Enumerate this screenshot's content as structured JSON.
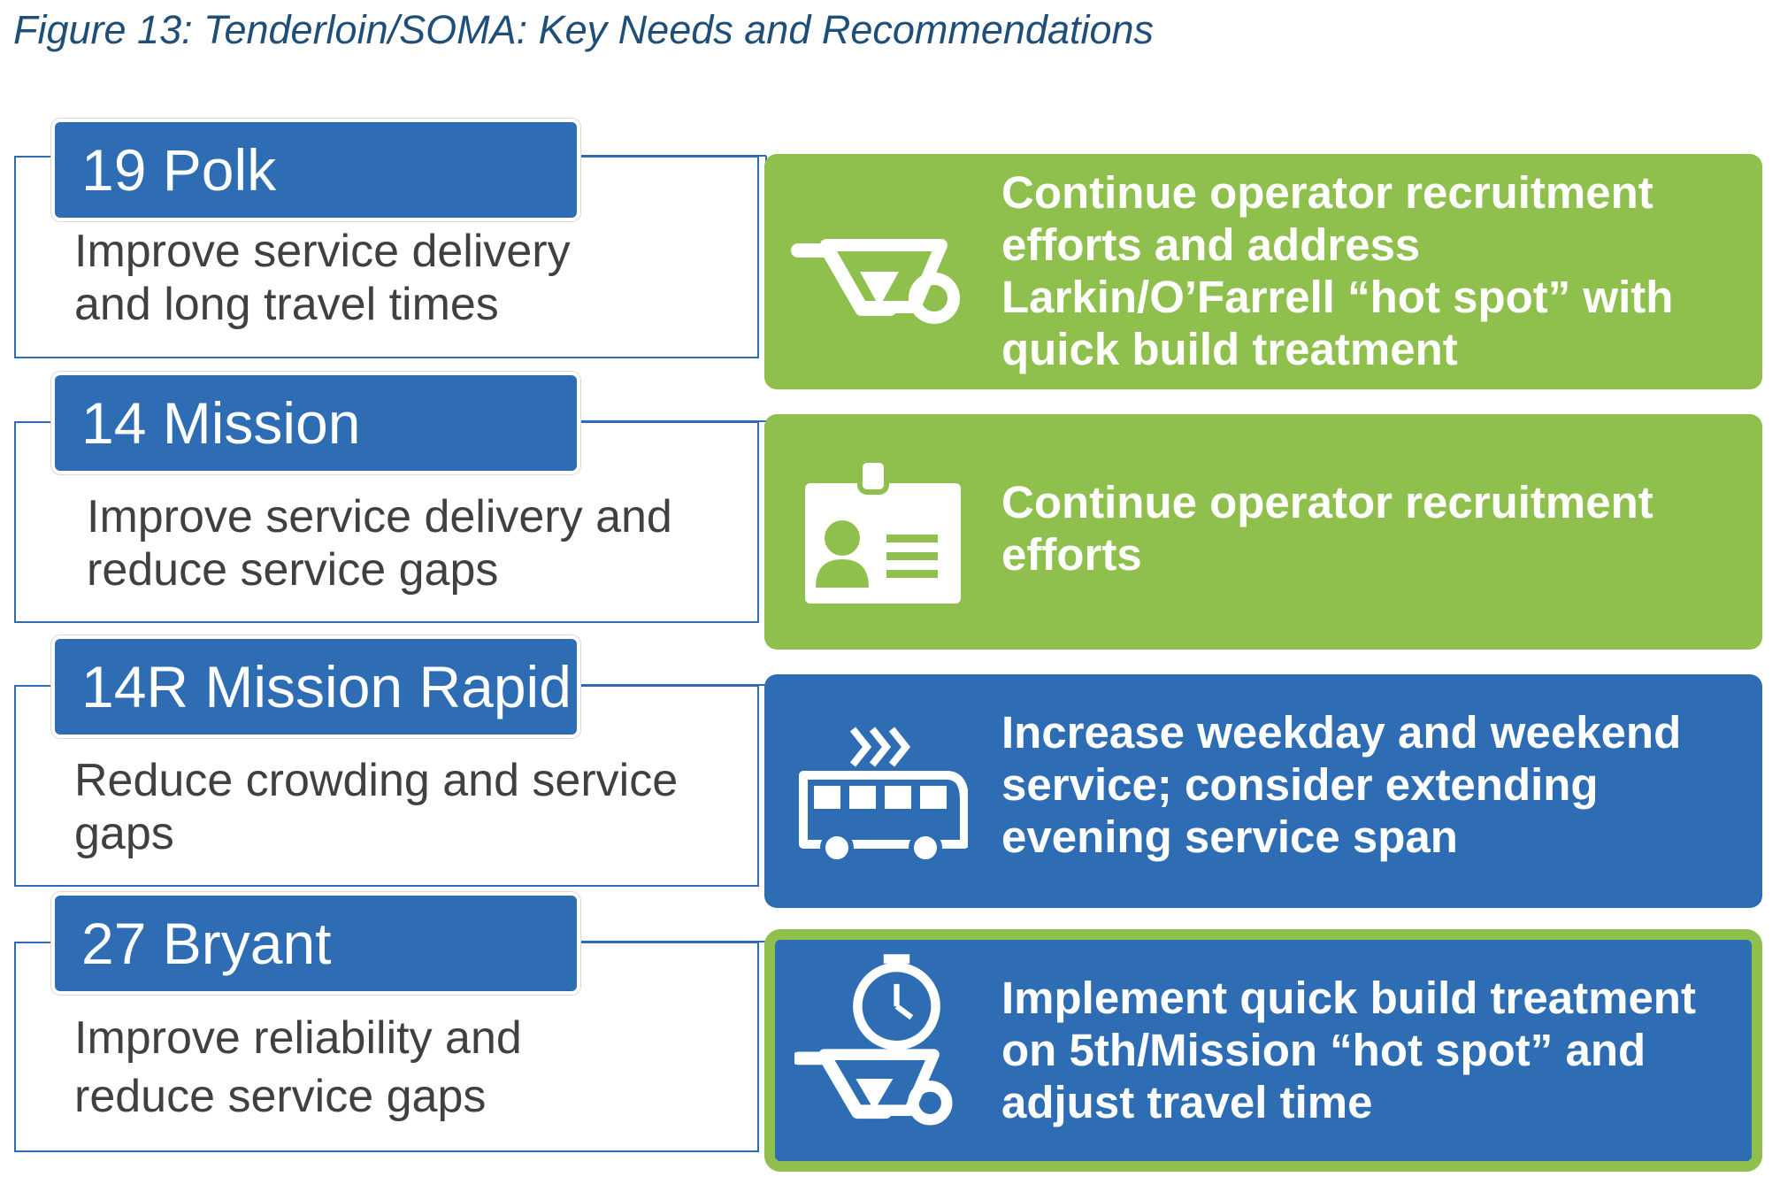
{
  "figure_caption": "Figure 13: Tenderloin/SOMA: Key Needs and Recommendations",
  "routes": [
    {
      "name": "19 Polk",
      "need": "Improve service delivery and long travel times"
    },
    {
      "name": "14 Mission",
      "need": "Improve service delivery and reduce service gaps"
    },
    {
      "name": "14R Mission Rapid",
      "need": "Reduce crowding and service gaps"
    },
    {
      "name": "27 Bryant",
      "need": "Improve reliability and reduce service gaps"
    }
  ],
  "recommendations": [
    {
      "text": "Continue operator recruitment efforts and address Larkin/O’Farrell “hot spot” with quick build treatment",
      "icon": "wheelbarrow-icon",
      "color": "#8fc04e"
    },
    {
      "text": "Continue operator recruitment efforts",
      "icon": "id-badge-icon",
      "color": "#8fc04e"
    },
    {
      "text": "Increase weekday and weekend service; consider extending evening service span",
      "icon": "fast-bus-icon",
      "color": "#2e6db4"
    },
    {
      "text": "Implement quick build treatment on 5th/Mission “hot spot” and adjust travel time",
      "icon": "stopwatch-wheelbarrow-icon",
      "color": "#2e6db4",
      "border_color": "#8fc04e"
    }
  ],
  "colors": {
    "route_blue": "#2e6db4",
    "rec_green": "#8fc04e",
    "text_gray": "#404040"
  }
}
